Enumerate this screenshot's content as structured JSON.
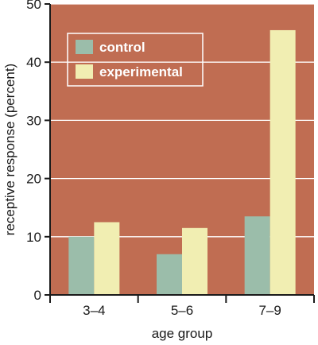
{
  "chart_data": {
    "type": "bar",
    "title": "",
    "xlabel": "age group",
    "ylabel": "receptive response (percent)",
    "categories": [
      "3–4",
      "5–6",
      "7–9"
    ],
    "series": [
      {
        "name": "control",
        "values": [
          10,
          7,
          13.5
        ],
        "color": "#9bbdaa"
      },
      {
        "name": "experimental",
        "values": [
          12.5,
          11.5,
          45.5
        ],
        "color": "#f1eeb2"
      }
    ],
    "ylim": [
      0,
      50
    ],
    "yticks": [
      0,
      10,
      20,
      30,
      40,
      50
    ],
    "grid": true,
    "legend_position": "top-left",
    "background_color": "#c06d52"
  }
}
